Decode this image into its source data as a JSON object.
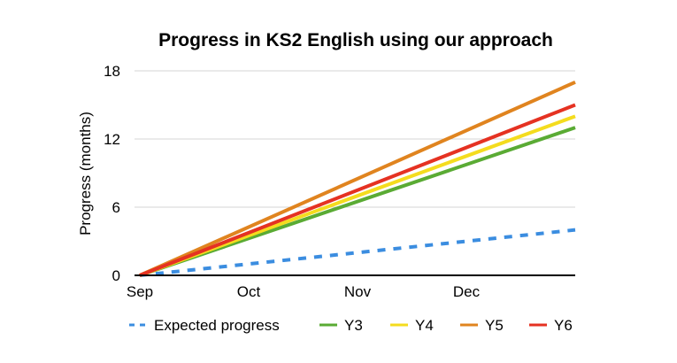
{
  "chart_data": {
    "type": "line",
    "title": "Progress in KS2 English using our approach",
    "ylabel": "Progress (months)",
    "xlabel": "",
    "categories": [
      "Sep",
      "Oct",
      "Nov",
      "Dec"
    ],
    "x_range": [
      0,
      4
    ],
    "ylim": [
      0,
      18
    ],
    "yticks": [
      0,
      6,
      12,
      18
    ],
    "grid": true,
    "legend": "bottom",
    "series": [
      {
        "name": "Expected progress",
        "x": [
          0,
          4
        ],
        "values": [
          0,
          4
        ],
        "color": "#3b8de0",
        "dashed": true
      },
      {
        "name": "Y3",
        "x": [
          0,
          4
        ],
        "values": [
          0,
          13
        ],
        "color": "#5aab34",
        "dashed": false
      },
      {
        "name": "Y4",
        "x": [
          0,
          4
        ],
        "values": [
          0,
          14
        ],
        "color": "#f4dc1e",
        "dashed": false
      },
      {
        "name": "Y5",
        "x": [
          0,
          4
        ],
        "values": [
          0,
          17
        ],
        "color": "#e0841f",
        "dashed": false
      },
      {
        "name": "Y6",
        "x": [
          0,
          4
        ],
        "values": [
          0,
          15
        ],
        "color": "#e53222",
        "dashed": false
      }
    ]
  }
}
